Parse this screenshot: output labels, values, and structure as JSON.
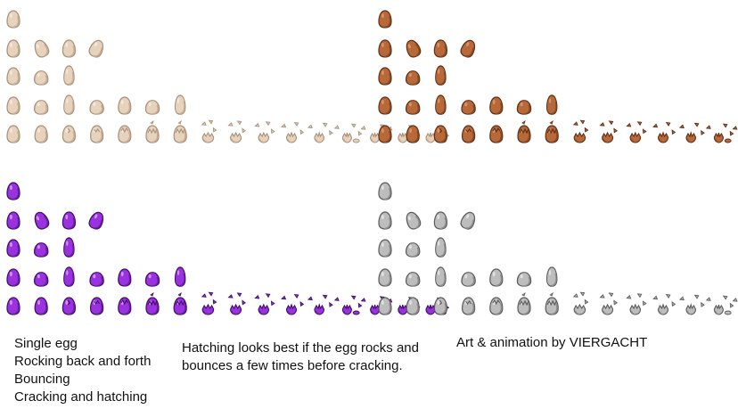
{
  "sprite_sheet": {
    "palettes": [
      {
        "name": "cream",
        "fill": "#e6d2bd",
        "shade": "#c7ad92",
        "outline": "#a89078",
        "highlight": "#f5ebe0"
      },
      {
        "name": "brown",
        "fill": "#b8693a",
        "shade": "#8e4a24",
        "outline": "#5e2f15",
        "highlight": "#e09a6a"
      },
      {
        "name": "purple",
        "fill": "#9b32e0",
        "shade": "#6e1fa8",
        "outline": "#3e0d66",
        "highlight": "#d9a6ff"
      },
      {
        "name": "gray",
        "fill": "#bdbdbd",
        "shade": "#8f8f8f",
        "outline": "#5a5a5a",
        "highlight": "#e8e8e8"
      }
    ],
    "rows": [
      {
        "label": "Single egg",
        "frames": [
          "upright"
        ]
      },
      {
        "label": "Rocking back and forth",
        "frames": [
          "upright",
          "tilt-left",
          "upright",
          "tilt-right"
        ]
      },
      {
        "label": "Bouncing",
        "frames": [
          "upright",
          "squash",
          "stretch"
        ]
      },
      {
        "label": "Cracking and hatching",
        "frames": [
          "upright",
          "squash",
          "stretch",
          "squash",
          "upright",
          "squash",
          "stretch"
        ]
      },
      {
        "label": "Cracking and hatching",
        "frames": [
          "upright",
          "upright",
          "crack-1",
          "crack-2",
          "crack-3",
          "crack-4",
          "crack-5",
          "burst-1",
          "burst-2",
          "burst-3",
          "burst-4",
          "burst-5",
          "burst-6",
          "burst-7",
          "burst-8",
          "burst-9"
        ]
      }
    ]
  },
  "captions": {
    "left": "Single egg\nRocking back and forth\nBouncing\nCracking and hatching",
    "middle": "Hatching looks best if the egg rocks and\nbounces a few times before cracking.",
    "right": "Art & animation by VIERGACHT"
  }
}
